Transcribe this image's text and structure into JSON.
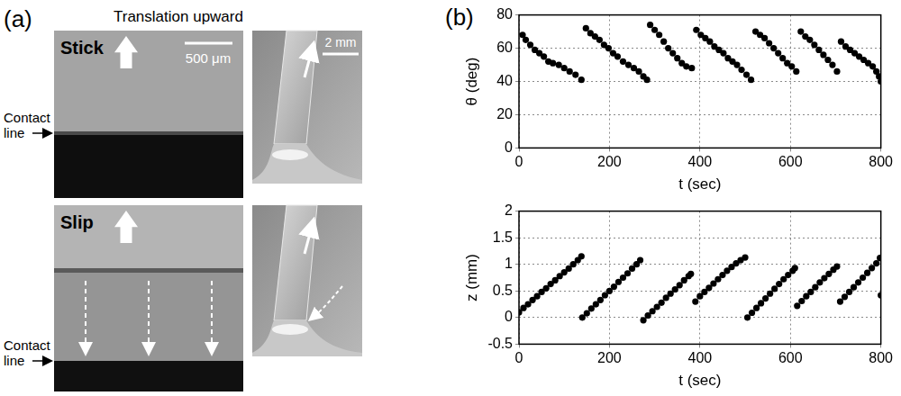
{
  "panel_labels": [
    "(a)",
    "(b)"
  ],
  "panel_a": {
    "title": "Translation upward",
    "stick": "Stick",
    "slip": "Slip",
    "scale_left": "500 μm",
    "scale_right": "2 mm",
    "contact_line": "Contact line"
  },
  "chart_data": [
    {
      "type": "scatter",
      "xlabel": "t (sec)",
      "ylabel": "θ (deg)",
      "xlim": [
        0,
        800
      ],
      "xticks": [
        0,
        200,
        400,
        600,
        800
      ],
      "ylim": [
        0,
        80
      ],
      "yticks": [
        0,
        20,
        40,
        60,
        80
      ],
      "grid": true,
      "marker": "circle",
      "color": "#000000",
      "x": [
        8,
        15,
        25,
        35,
        45,
        55,
        65,
        75,
        88,
        100,
        112,
        125,
        138,
        148,
        158,
        168,
        178,
        188,
        198,
        208,
        218,
        230,
        242,
        254,
        265,
        275,
        283,
        290,
        300,
        310,
        320,
        330,
        340,
        350,
        360,
        370,
        382,
        392,
        402,
        412,
        422,
        432,
        442,
        452,
        462,
        472,
        482,
        492,
        503,
        513,
        523,
        533,
        543,
        553,
        563,
        573,
        583,
        593,
        603,
        613,
        623,
        633,
        643,
        653,
        663,
        673,
        683,
        693,
        703,
        712,
        722,
        732,
        742,
        752,
        762,
        772,
        782,
        790,
        796,
        800
      ],
      "values": [
        68,
        65,
        62,
        59,
        57,
        55,
        52,
        51,
        50,
        48,
        46,
        44,
        41,
        72,
        69,
        67,
        65,
        62,
        60,
        57,
        55,
        52,
        50,
        48,
        46,
        43,
        41,
        74,
        71,
        68,
        64,
        60,
        57,
        54,
        51,
        49,
        48,
        71,
        68,
        66,
        64,
        61,
        59,
        57,
        54,
        52,
        50,
        47,
        44,
        41,
        70,
        68,
        66,
        63,
        60,
        57,
        54,
        51,
        49,
        46,
        70,
        67,
        65,
        62,
        59,
        56,
        53,
        50,
        46,
        64,
        61,
        59,
        57,
        55,
        53,
        51,
        49,
        46,
        43,
        40
      ]
    },
    {
      "type": "scatter",
      "xlabel": "t (sec)",
      "ylabel": "z (mm)",
      "xlim": [
        0,
        800
      ],
      "xticks": [
        0,
        200,
        400,
        600,
        800
      ],
      "ylim": [
        -0.5,
        2
      ],
      "yticks": [
        -0.5,
        0,
        0.5,
        1,
        1.5,
        2
      ],
      "grid": true,
      "marker": "circle",
      "color": "#000000",
      "x": [
        0,
        10,
        20,
        30,
        40,
        50,
        60,
        70,
        80,
        90,
        100,
        110,
        120,
        130,
        138,
        140,
        150,
        160,
        170,
        180,
        190,
        200,
        210,
        220,
        230,
        240,
        250,
        260,
        268,
        275,
        285,
        295,
        305,
        315,
        325,
        335,
        345,
        355,
        365,
        375,
        380,
        390,
        400,
        410,
        420,
        430,
        440,
        450,
        460,
        470,
        480,
        490,
        500,
        505,
        515,
        525,
        535,
        545,
        555,
        565,
        575,
        585,
        595,
        605,
        610,
        615,
        625,
        635,
        645,
        655,
        665,
        675,
        685,
        695,
        703,
        710,
        720,
        730,
        740,
        750,
        760,
        770,
        780,
        790,
        798,
        800
      ],
      "values": [
        0.1,
        0.18,
        0.25,
        0.33,
        0.4,
        0.48,
        0.55,
        0.63,
        0.7,
        0.78,
        0.85,
        0.92,
        1.0,
        1.08,
        1.15,
        0.0,
        0.08,
        0.17,
        0.25,
        0.33,
        0.42,
        0.5,
        0.58,
        0.67,
        0.75,
        0.83,
        0.92,
        1.0,
        1.08,
        -0.05,
        0.04,
        0.12,
        0.2,
        0.28,
        0.37,
        0.45,
        0.53,
        0.61,
        0.7,
        0.78,
        0.82,
        0.3,
        0.4,
        0.48,
        0.56,
        0.64,
        0.72,
        0.8,
        0.88,
        0.95,
        1.02,
        1.08,
        1.13,
        0.0,
        0.09,
        0.18,
        0.27,
        0.36,
        0.45,
        0.54,
        0.63,
        0.72,
        0.8,
        0.88,
        0.93,
        0.22,
        0.31,
        0.4,
        0.48,
        0.57,
        0.66,
        0.74,
        0.82,
        0.9,
        0.96,
        0.3,
        0.39,
        0.48,
        0.57,
        0.66,
        0.75,
        0.84,
        0.93,
        1.02,
        1.12,
        0.42
      ]
    }
  ]
}
